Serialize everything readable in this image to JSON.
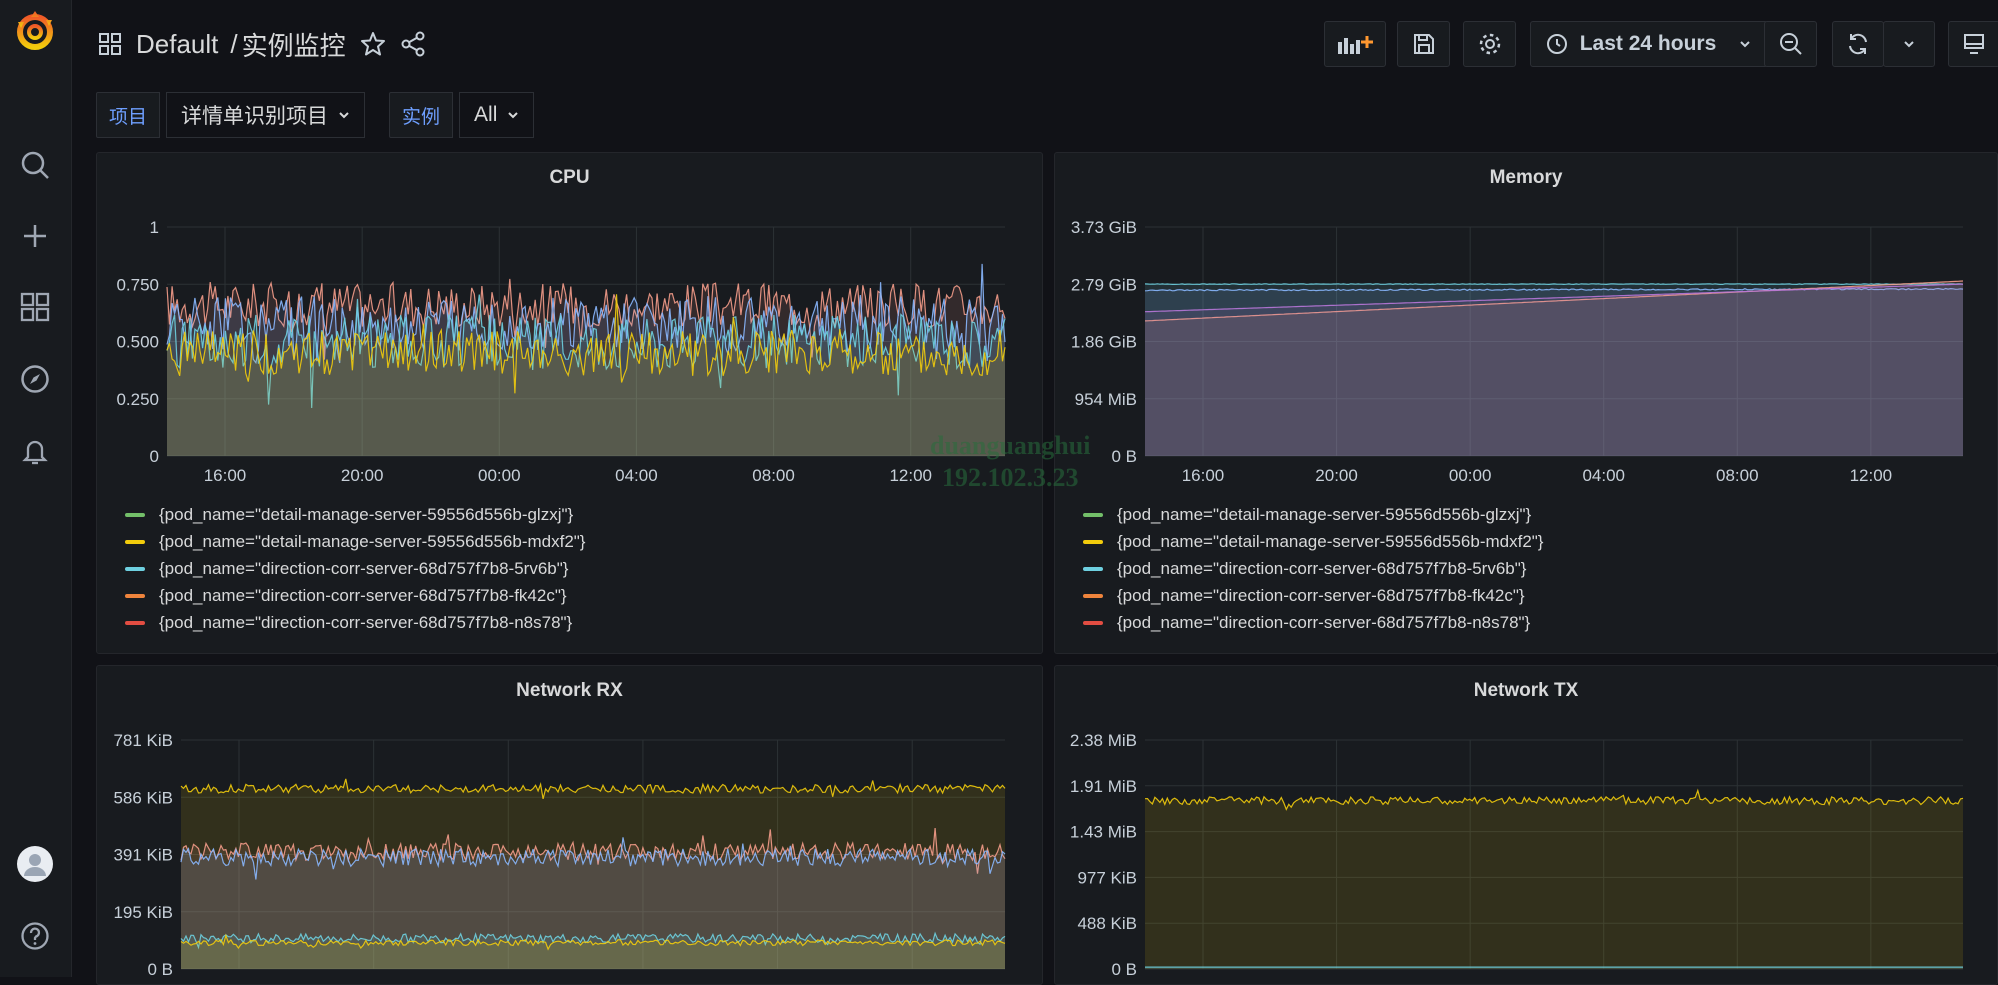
{
  "breadcrumb": {
    "folder": "Default",
    "separator": "/",
    "dashboard": "实例监控"
  },
  "toolbar": {
    "time_range": "Last 24 hours"
  },
  "variables": [
    {
      "label": "项目",
      "value": "详情单识别项目"
    },
    {
      "label": "实例",
      "value": "All"
    }
  ],
  "watermark": {
    "line1": "duanguanghui",
    "line2": "192.102.3.23"
  },
  "colors": {
    "green": "#73bf69",
    "yellow": "#f2cc0c",
    "blue": "#8ab8ff",
    "cyan": "#6ed0e0",
    "orange": "#ff9830",
    "red": "#f2495c",
    "pink": "#f49c8a",
    "purple": "#b877d9"
  },
  "legend": [
    {
      "label": "{pod_name=\"detail-manage-server-59556d556b-glzxj\"}",
      "color": "#73bf69"
    },
    {
      "label": "{pod_name=\"detail-manage-server-59556d556b-mdxf2\"}",
      "color": "#f2cc0c"
    },
    {
      "label": "{pod_name=\"direction-corr-server-68d757f7b8-5rv6b\"}",
      "color": "#6ed0e0"
    },
    {
      "label": "{pod_name=\"direction-corr-server-68d757f7b8-fk42c\"}",
      "color": "#ef843c"
    },
    {
      "label": "{pod_name=\"direction-corr-server-68d757f7b8-n8s78\"}",
      "color": "#e24d42"
    }
  ],
  "chart_data": [
    {
      "id": "cpu",
      "title": "CPU",
      "type": "area",
      "x_ticks": [
        "16:00",
        "20:00",
        "00:00",
        "04:00",
        "08:00",
        "12:00"
      ],
      "y_ticks": [
        "1",
        "0.750",
        "0.500",
        "0.250",
        "0"
      ],
      "ylim": [
        0,
        1
      ],
      "series": [
        {
          "color": "#f49c8a",
          "mean": 0.66,
          "noise": 0.1
        },
        {
          "color": "#8ab8ff",
          "mean": 0.58,
          "noise": 0.12
        },
        {
          "color": "#6ed0e0",
          "mean": 0.5,
          "noise": 0.12
        },
        {
          "color": "#f2cc0c",
          "mean": 0.45,
          "noise": 0.1
        }
      ]
    },
    {
      "id": "memory",
      "title": "Memory",
      "type": "area",
      "x_ticks": [
        "16:00",
        "20:00",
        "00:00",
        "04:00",
        "08:00",
        "12:00"
      ],
      "y_ticks": [
        "3.73 GiB",
        "2.79 GiB",
        "1.86 GiB",
        "954 MiB",
        "0 B"
      ],
      "ylim": [
        0,
        3.73
      ],
      "series": [
        {
          "color": "#6ed0e0",
          "start": 2.8,
          "end": 2.8,
          "noise": 0.005
        },
        {
          "color": "#8ab8ff",
          "start": 2.7,
          "end": 2.72,
          "noise": 0.01
        },
        {
          "color": "#f49c8a",
          "start": 2.2,
          "end": 2.85,
          "noise": 0.0
        },
        {
          "color": "#b877d9",
          "start": 2.35,
          "end": 2.8,
          "noise": 0.0
        }
      ]
    },
    {
      "id": "network-rx",
      "title": "Network RX",
      "type": "area",
      "y_ticks": [
        "781 KiB",
        "586 KiB",
        "391 KiB",
        "195 KiB",
        "0 B"
      ],
      "ylim": [
        0,
        781
      ],
      "series": [
        {
          "color": "#f2cc0c",
          "mean": 615,
          "noise": 15
        },
        {
          "color": "#f49c8a",
          "mean": 400,
          "noise": 30
        },
        {
          "color": "#8ab8ff",
          "mean": 380,
          "noise": 30
        },
        {
          "color": "#6ed0e0",
          "mean": 105,
          "noise": 15
        },
        {
          "color": "#f2cc0c",
          "mean": 90,
          "noise": 10
        }
      ]
    },
    {
      "id": "network-tx",
      "title": "Network TX",
      "type": "area",
      "y_ticks": [
        "2.38 MiB",
        "1.91 MiB",
        "1.43 MiB",
        "977 KiB",
        "488 KiB",
        "0 B"
      ],
      "ylim": [
        0,
        2.38
      ],
      "series": [
        {
          "color": "#f2cc0c",
          "mean": 1.75,
          "noise": 0.04
        },
        {
          "color": "#6ed0e0",
          "mean": 0.02,
          "noise": 0.0
        }
      ]
    }
  ]
}
